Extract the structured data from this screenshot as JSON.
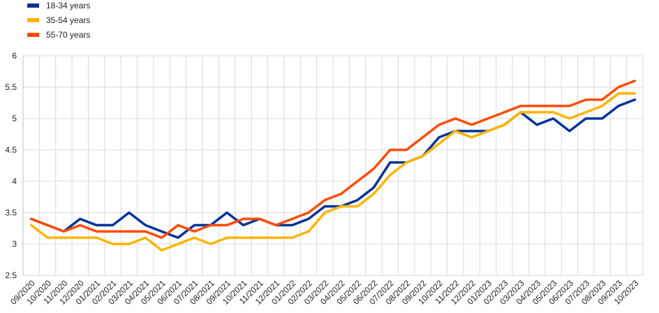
{
  "chart_data": {
    "type": "line",
    "title": "",
    "xlabel": "",
    "ylabel": "",
    "ylim": [
      2.5,
      6
    ],
    "yticks": [
      2.5,
      3,
      3.5,
      4,
      4.5,
      5,
      5.5,
      6
    ],
    "grid": true,
    "legend_position": "top-left",
    "categories": [
      "09/2020",
      "10/2020",
      "11/2020",
      "12/2020",
      "01/2021",
      "02/2021",
      "03/2021",
      "04/2021",
      "05/2021",
      "06/2021",
      "07/2021",
      "08/2021",
      "09/2021",
      "10/2021",
      "11/2021",
      "12/2021",
      "01/2022",
      "02/2022",
      "03/2022",
      "04/2022",
      "05/2022",
      "06/2022",
      "07/2022",
      "08/2022",
      "09/2022",
      "10/2022",
      "11/2022",
      "12/2022",
      "01/2023",
      "02/2023",
      "03/2023",
      "04/2023",
      "05/2023",
      "06/2023",
      "07/2023",
      "08/2023",
      "09/2023",
      "10/2023"
    ],
    "series": [
      {
        "name": "18-34 years",
        "color": "#003299",
        "values": [
          3.4,
          3.3,
          3.2,
          3.4,
          3.3,
          3.3,
          3.5,
          3.3,
          3.2,
          3.1,
          3.3,
          3.3,
          3.5,
          3.3,
          3.4,
          3.3,
          3.3,
          3.4,
          3.6,
          3.6,
          3.7,
          3.9,
          4.3,
          4.3,
          4.4,
          4.7,
          4.8,
          4.8,
          4.8,
          4.9,
          5.1,
          4.9,
          5.0,
          4.8,
          5.0,
          5.0,
          5.2,
          5.3
        ]
      },
      {
        "name": "35-54 years",
        "color": "#FFB400",
        "values": [
          3.3,
          3.1,
          3.1,
          3.1,
          3.1,
          3.0,
          3.0,
          3.1,
          2.9,
          3.0,
          3.1,
          3.0,
          3.1,
          3.1,
          3.1,
          3.1,
          3.1,
          3.2,
          3.5,
          3.6,
          3.6,
          3.8,
          4.1,
          4.3,
          4.4,
          4.6,
          4.8,
          4.7,
          4.8,
          4.9,
          5.1,
          5.1,
          5.1,
          5.0,
          5.1,
          5.2,
          5.4,
          5.4
        ]
      },
      {
        "name": "55-70 years",
        "color": "#FF4B00",
        "values": [
          3.4,
          3.3,
          3.2,
          3.3,
          3.2,
          3.2,
          3.2,
          3.2,
          3.1,
          3.3,
          3.2,
          3.3,
          3.3,
          3.4,
          3.4,
          3.3,
          3.4,
          3.5,
          3.7,
          3.8,
          4.0,
          4.2,
          4.5,
          4.5,
          4.7,
          4.9,
          5.0,
          4.9,
          5.0,
          5.1,
          5.2,
          5.2,
          5.2,
          5.2,
          5.3,
          5.3,
          5.5,
          5.6
        ]
      }
    ]
  }
}
